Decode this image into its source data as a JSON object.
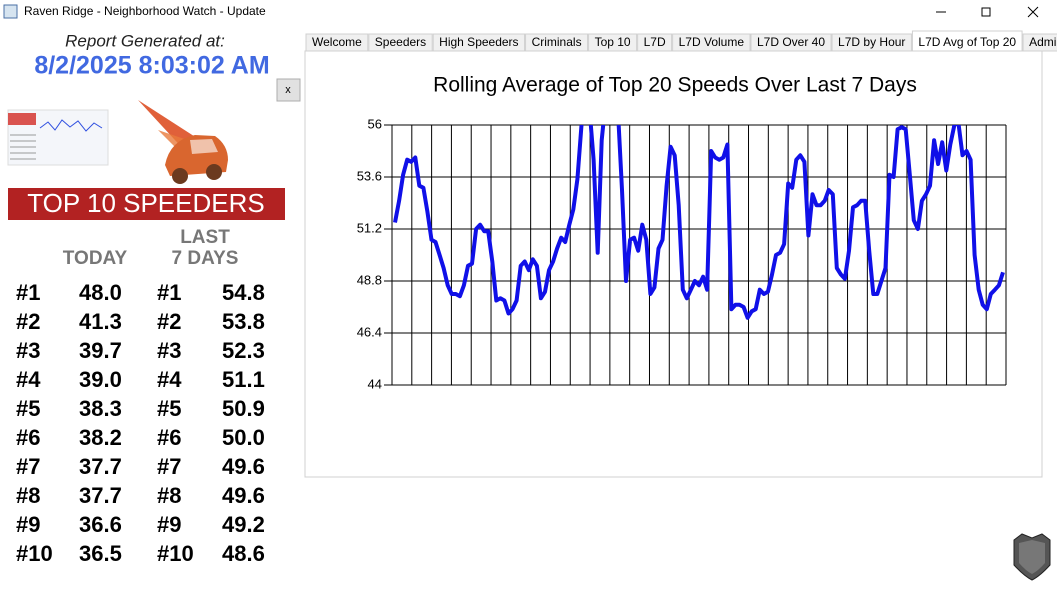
{
  "window": {
    "title": "Raven Ridge - Neighborhood Watch - Update"
  },
  "report": {
    "label": "Report Generated at:",
    "timestamp": "8/2/2025 8:03:02 AM"
  },
  "close_button": "x",
  "speeders": {
    "title": "TOP 10 SPEEDERS",
    "today_header": "TODAY",
    "last7_header": [
      "LAST",
      "7 DAYS"
    ],
    "rows": [
      [
        "#1",
        "48.0",
        "#1",
        "54.8"
      ],
      [
        "#2",
        "41.3",
        "#2",
        "53.8"
      ],
      [
        "#3",
        "39.7",
        "#3",
        "52.3"
      ],
      [
        "#4",
        "39.0",
        "#4",
        "51.1"
      ],
      [
        "#5",
        "38.3",
        "#5",
        "50.9"
      ],
      [
        "#6",
        "38.2",
        "#6",
        "50.0"
      ],
      [
        "#7",
        "37.7",
        "#7",
        "49.6"
      ],
      [
        "#8",
        "37.7",
        "#8",
        "49.6"
      ],
      [
        "#9",
        "36.6",
        "#9",
        "49.2"
      ],
      [
        "#10",
        "36.5",
        "#10",
        "48.6"
      ]
    ]
  },
  "tabs": {
    "items": [
      "Welcome",
      "Speeders",
      "High Speeders",
      "Criminals",
      "Top 10",
      "L7D",
      "L7D Volume",
      "L7D Over 40",
      "L7D by Hour",
      "L7D Avg of Top 20",
      "Admin"
    ],
    "selected": 9
  },
  "chart_data": {
    "type": "line",
    "title": "Rolling Average of Top 20 Speeds Over Last 7 Days",
    "color": "#1010e8",
    "ylim": [
      44,
      56
    ],
    "yticks": [
      44,
      46.4,
      48.8,
      51.2,
      53.6,
      56
    ],
    "grid": true,
    "values": [
      51.5,
      52.5,
      53.7,
      54.4,
      54.3,
      54.5,
      53.2,
      53.1,
      52.0,
      50.7,
      50.6,
      50.0,
      49.4,
      48.6,
      48.2,
      48.2,
      48.1,
      48.6,
      49.5,
      49.6,
      51.2,
      51.4,
      51.1,
      51.1,
      49.7,
      47.9,
      48.0,
      47.9,
      47.3,
      47.5,
      47.9,
      49.5,
      49.7,
      49.3,
      49.8,
      49.5,
      48.0,
      48.3,
      49.3,
      49.7,
      50.3,
      50.8,
      50.6,
      51.4,
      52.1,
      53.5,
      56.0,
      57.2,
      56.7,
      54.4,
      50.1,
      55.3,
      57.2,
      57.4,
      57.2,
      56.7,
      53.0,
      48.8,
      50.7,
      50.8,
      50.2,
      51.4,
      50.7,
      48.2,
      48.5,
      50.3,
      50.7,
      53.2,
      55.0,
      54.6,
      52.3,
      48.4,
      48.0,
      48.4,
      48.8,
      48.6,
      49.0,
      48.4,
      54.8,
      54.5,
      54.4,
      54.5,
      55.1,
      47.5,
      47.7,
      47.7,
      47.6,
      47.1,
      47.4,
      47.5,
      48.4,
      48.2,
      48.3,
      49.1,
      50.0,
      50.1,
      50.5,
      53.3,
      53.1,
      54.4,
      54.6,
      54.3,
      50.9,
      52.8,
      52.3,
      52.3,
      52.5,
      53.0,
      52.8,
      49.4,
      49.1,
      48.9,
      50.2,
      52.2,
      52.3,
      52.5,
      52.5,
      50.2,
      48.2,
      48.2,
      48.8,
      49.4,
      53.7,
      53.6,
      55.8,
      55.9,
      55.8,
      53.7,
      51.6,
      51.2,
      52.5,
      52.8,
      53.2,
      55.3,
      54.2,
      55.2,
      53.9,
      55.1,
      56.0,
      56.1,
      54.6,
      54.8,
      54.4,
      50.0,
      48.4,
      47.7,
      47.5,
      48.2,
      48.4,
      48.6,
      49.2
    ]
  }
}
